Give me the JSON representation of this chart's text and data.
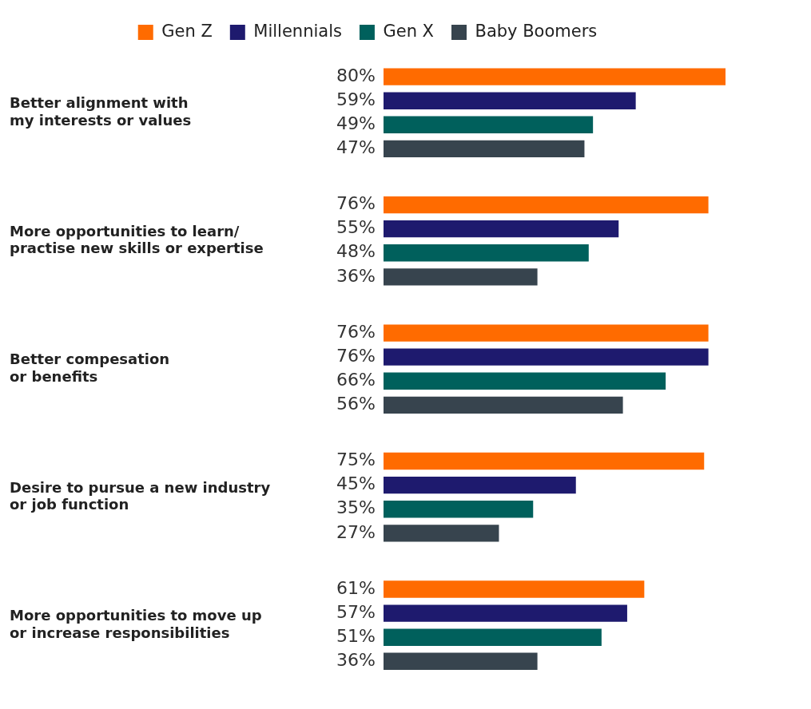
{
  "chart_data": {
    "type": "bar",
    "orientation": "horizontal",
    "legend": "top",
    "categories": [
      "Better alignment with\nmy interests or values",
      "More opportunities to learn/\npractise new skills or expertise",
      "Better compesation\nor benefits",
      "Desire to pursue a new industry\nor job function",
      "More opportunities to move up\nor increase responsibilities"
    ],
    "series": [
      {
        "name": "Gen Z",
        "color": "#ff6b00",
        "values": [
          80,
          76,
          76,
          75,
          61
        ],
        "value_labels": [
          "80%",
          "76%",
          "76%",
          "75%",
          "61%"
        ]
      },
      {
        "name": "Millennials",
        "color": "#1e1a6e",
        "values": [
          59,
          55,
          76,
          45,
          57
        ],
        "value_labels": [
          "59%",
          "55%",
          "76%",
          "45%",
          "57%"
        ]
      },
      {
        "name": "Gen X",
        "color": "#00605c",
        "values": [
          49,
          48,
          66,
          35,
          51
        ],
        "value_labels": [
          "49%",
          "48%",
          "66%",
          "35%",
          "51%"
        ]
      },
      {
        "name": "Baby Boomers",
        "color": "#37444e",
        "values": [
          47,
          36,
          56,
          27,
          36
        ],
        "value_labels": [
          "47%",
          "36%",
          "56%",
          "27%",
          "36%"
        ]
      }
    ]
  }
}
